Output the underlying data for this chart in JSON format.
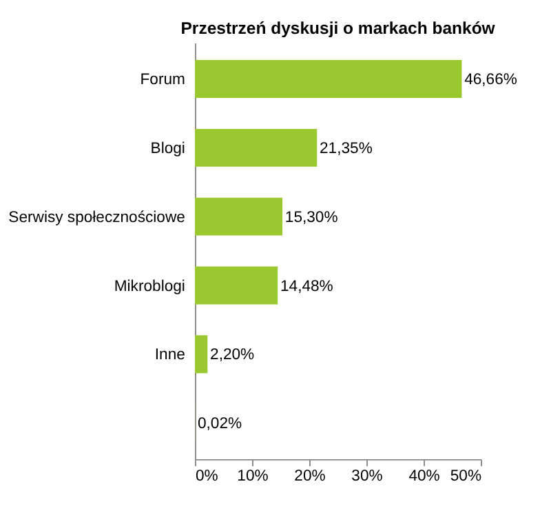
{
  "chart_data": {
    "type": "bar",
    "orientation": "horizontal",
    "title": "Przestrzeń dyskusji o markach banków",
    "categories": [
      "Forum",
      "Blogi",
      "Serwisy społecznościowe",
      "Mikroblogi",
      "Inne",
      null
    ],
    "values": [
      46.66,
      21.35,
      15.3,
      14.48,
      2.2,
      0.02
    ],
    "value_labels": [
      "46,66%",
      "21,35%",
      "15,30%",
      "14,48%",
      "2,20%",
      "0,02%"
    ],
    "color": "#99c92e",
    "xlim": [
      0,
      50
    ],
    "xticks": [
      {
        "value": 0,
        "label": "0%"
      },
      {
        "value": 10,
        "label": "10%"
      },
      {
        "value": 20,
        "label": "20%"
      },
      {
        "value": 30,
        "label": "30%"
      },
      {
        "value": 40,
        "label": "40%"
      },
      {
        "value": 50,
        "label": "50%"
      }
    ],
    "grid": false
  }
}
